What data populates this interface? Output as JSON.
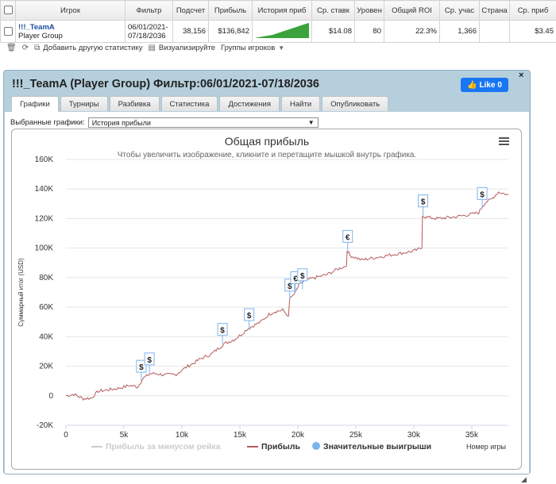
{
  "grid": {
    "columns": [
      "Игрок",
      "Фильтр",
      "Подсчет",
      "Прибыль",
      "История приб",
      "Ср. ставк",
      "Уровен",
      "Общий ROI",
      "Ср. учас",
      "Страна",
      "Ср. приб"
    ],
    "row": {
      "player_name": "!!!_TeamA",
      "player_sub": "Player Group",
      "filter_from": "06/01/2021-",
      "filter_to": "07/18/2036",
      "count": "38,156",
      "profit": "$136,842",
      "avg_stake": "$14.08",
      "level": "80",
      "roi": "22.3%",
      "avg_field": "1,366",
      "country": "",
      "avg_profit": "$3.45"
    }
  },
  "toolbar": {
    "add_stats": "Добавить другую статистику",
    "visualize": "Визуализируйте",
    "groups": "Группы игроков"
  },
  "dialog": {
    "title": "!!!_TeamA (Player Group) Фильтр:06/01/2021-07/18/2036",
    "like_label": "Like 0",
    "close_label": "×",
    "tabs": [
      "Графики",
      "Турниры",
      "Разбивка",
      "Статистика",
      "Достижения",
      "Найти",
      "Опубликовать"
    ],
    "active_tab": 0,
    "select_label": "Выбранные графики:",
    "select_value": "История прибыли"
  },
  "chart_data": {
    "type": "line",
    "title": "Общая прибыль",
    "subtitle": "Чтобы увеличить изображение, кликните и перетащите мышкой внутрь графика.",
    "ylabel": "Суммарный итог (USD)",
    "xlabel": "Номер игры",
    "xlim": [
      0,
      38156
    ],
    "ylim": [
      -20000,
      160000
    ],
    "x_ticks": [
      0,
      5000,
      10000,
      15000,
      20000,
      25000,
      30000,
      35000
    ],
    "x_tick_labels": [
      "0",
      "5k",
      "10k",
      "15k",
      "20k",
      "25k",
      "30k",
      "35k"
    ],
    "y_ticks": [
      -20000,
      0,
      20000,
      40000,
      60000,
      80000,
      100000,
      120000,
      140000,
      160000
    ],
    "y_tick_labels": [
      "-20K",
      "0",
      "20K",
      "40K",
      "60K",
      "80K",
      "100K",
      "120K",
      "140K",
      "160K"
    ],
    "grid": "horizontal",
    "legend_position": "bottom",
    "legend": [
      "Прибыль за минусом рейка",
      "Прибыль",
      "Значительные выигрыши"
    ],
    "series": [
      {
        "name": "Прибыль",
        "color": "#b55b5b",
        "x": [
          0,
          700,
          1500,
          2200,
          2800,
          3600,
          4500,
          5500,
          6200,
          6500,
          6700,
          7100,
          7300,
          7800,
          8500,
          9500,
          10500,
          11000,
          11600,
          12500,
          13300,
          13600,
          14500,
          15200,
          15600,
          16300,
          16800,
          17500,
          18000,
          18700,
          19200,
          19400,
          19800,
          20100,
          20600,
          21500,
          22500,
          23500,
          24200,
          24300,
          24500,
          25500,
          27000,
          28500,
          30000,
          30700,
          30800,
          31000,
          32000,
          33500,
          35000,
          35600,
          35900,
          36200,
          36700,
          37300,
          38156
        ],
        "y": [
          0,
          1000,
          -2000,
          -1500,
          3000,
          4000,
          5000,
          7000,
          6000,
          10000,
          12000,
          14000,
          15000,
          15000,
          14000,
          14500,
          20000,
          22000,
          25000,
          28000,
          33000,
          35000,
          38000,
          42000,
          45000,
          48000,
          50000,
          55000,
          57000,
          58000,
          54000,
          66000,
          70000,
          75000,
          78000,
          80000,
          82000,
          86000,
          88000,
          98000,
          95000,
          92000,
          94000,
          96000,
          98000,
          100000,
          122000,
          121000,
          120000,
          121000,
          123000,
          124000,
          128000,
          131000,
          133000,
          138000,
          136000
        ]
      }
    ],
    "significant_wins": [
      {
        "x": 6500,
        "y": 10000,
        "symbol": "$"
      },
      {
        "x": 7200,
        "y": 15000,
        "symbol": "$"
      },
      {
        "x": 13500,
        "y": 35000,
        "symbol": "$"
      },
      {
        "x": 15800,
        "y": 45000,
        "symbol": "$"
      },
      {
        "x": 19300,
        "y": 65000,
        "symbol": "$"
      },
      {
        "x": 19800,
        "y": 70000,
        "symbol": "€"
      },
      {
        "x": 20400,
        "y": 72000,
        "symbol": "$"
      },
      {
        "x": 24300,
        "y": 98000,
        "symbol": "€"
      },
      {
        "x": 30800,
        "y": 122000,
        "symbol": "$"
      },
      {
        "x": 35900,
        "y": 127000,
        "symbol": "$"
      }
    ],
    "colors": {
      "profit": "#b55b5b",
      "net_profit": "#cccccc",
      "significant": "#7cb5ec",
      "title": "#333333"
    }
  }
}
